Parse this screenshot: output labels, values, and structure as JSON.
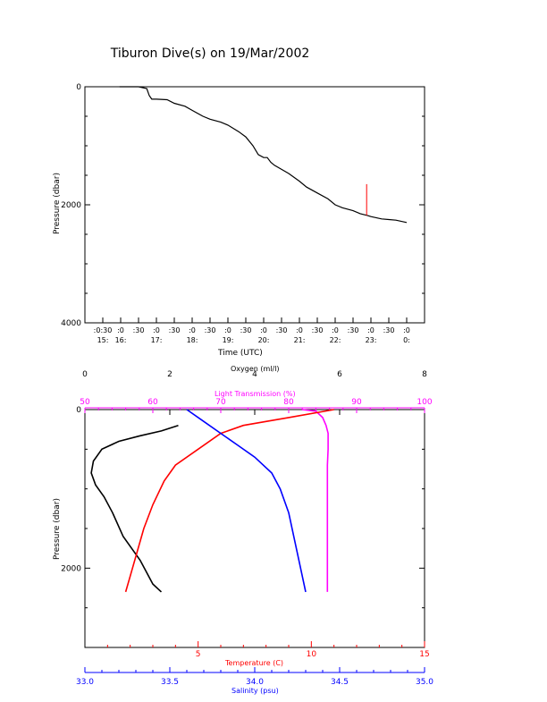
{
  "title": "Tiburon Dive(s) on 19/Mar/2002",
  "colors": {
    "depth_trace": "#000000",
    "spike": "#ff0000",
    "oxygen": "#000000",
    "light": "#ff00ff",
    "temperature": "#ff0000",
    "salinity": "#0000ff"
  },
  "chart_data": [
    {
      "type": "line",
      "title": "Tiburon Dive(s) on 19/Mar/2002",
      "xlabel": "Time (UTC)",
      "ylabel": "Pressure (dbar)",
      "ylim": [
        4000,
        0
      ],
      "yticks": [
        {
          "value": 0,
          "label": "0"
        },
        {
          "value": 2000,
          "label": "2000"
        },
        {
          "value": 4000,
          "label": "4000"
        }
      ],
      "xticks": [
        {
          "value": 15.5,
          "top": ":0:30",
          "bottom": "15:"
        },
        {
          "value": 16.0,
          "top": ":0",
          "bottom": "16:"
        },
        {
          "value": 16.5,
          "top": ":30",
          "bottom": ""
        },
        {
          "value": 17.0,
          "top": ":0",
          "bottom": "17:"
        },
        {
          "value": 17.5,
          "top": ":30",
          "bottom": ""
        },
        {
          "value": 18.0,
          "top": ":0",
          "bottom": "18:"
        },
        {
          "value": 18.5,
          "top": ":30",
          "bottom": ""
        },
        {
          "value": 19.0,
          "top": ":0",
          "bottom": "19:"
        },
        {
          "value": 19.5,
          "top": ":30",
          "bottom": ""
        },
        {
          "value": 20.0,
          "top": ":0",
          "bottom": "20:"
        },
        {
          "value": 20.5,
          "top": ":30",
          "bottom": ""
        },
        {
          "value": 21.0,
          "top": ":0",
          "bottom": "21:"
        },
        {
          "value": 21.5,
          "top": ":30",
          "bottom": ""
        },
        {
          "value": 22.0,
          "top": ":0",
          "bottom": "22:"
        },
        {
          "value": 22.5,
          "top": ":30",
          "bottom": ""
        },
        {
          "value": 23.0,
          "top": ":0",
          "bottom": "23:"
        },
        {
          "value": 23.5,
          "top": ":30",
          "bottom": ""
        },
        {
          "value": 24.0,
          "top": ":0",
          "bottom": "0:"
        }
      ],
      "series": [
        {
          "x": [
            15.97,
            16.3,
            16.5,
            16.73,
            16.8,
            16.87,
            17.0,
            17.3,
            17.5,
            17.8,
            18.0,
            18.3,
            18.5,
            18.8,
            19.0,
            19.3,
            19.5,
            19.7,
            19.85,
            20.0,
            20.1,
            20.2,
            20.3,
            20.5,
            20.7,
            21.0,
            21.2,
            21.5,
            21.8,
            22.0,
            22.2,
            22.5,
            22.7,
            22.9,
            23.0,
            23.3,
            23.5,
            23.7,
            24.0
          ],
          "y": [
            0,
            0,
            0,
            30,
            150,
            210,
            210,
            220,
            280,
            330,
            400,
            500,
            550,
            600,
            650,
            760,
            850,
            1000,
            1150,
            1200,
            1200,
            1280,
            1330,
            1400,
            1470,
            1600,
            1700,
            1800,
            1900,
            2000,
            2050,
            2100,
            2150,
            2180,
            2200,
            2240,
            2250,
            2260,
            2300
          ]
        }
      ],
      "annotations": [
        {
          "type": "spike",
          "x": 22.88,
          "y_from": 2180,
          "y_to": 1650,
          "color": "#ff0000"
        }
      ]
    },
    {
      "type": "line",
      "ylabel": "Pressure (dbar)",
      "ylim": [
        3000,
        0
      ],
      "yticks": [
        {
          "value": 0,
          "label": "0"
        },
        {
          "value": 2000,
          "label": "2000"
        }
      ],
      "axes": {
        "oxygen": {
          "label": "Oxygen (ml/l)",
          "range": [
            0,
            8
          ],
          "ticks": [
            "0",
            "2",
            "4",
            "6",
            "8"
          ]
        },
        "light": {
          "label": "Light Transmission (%)",
          "range": [
            50,
            100
          ],
          "ticks": [
            "50",
            "60",
            "70",
            "80",
            "90",
            "100"
          ]
        },
        "temperature": {
          "label": "Temperature (C)",
          "range": [
            0,
            15
          ],
          "ticks": [
            "5",
            "10",
            "15"
          ]
        },
        "salinity": {
          "label": "Salinity (psu)",
          "range": [
            33.0,
            35.0
          ],
          "ticks": [
            "33.0",
            "33.5",
            "34.0",
            "34.5",
            "35.0"
          ]
        }
      },
      "series": [
        {
          "axis": "oxygen",
          "x": [
            2.2,
            1.8,
            1.3,
            0.8,
            0.4,
            0.2,
            0.15,
            0.25,
            0.45,
            0.65,
            0.9,
            1.3,
            1.6,
            1.8
          ],
          "y": [
            200,
            270,
            330,
            400,
            500,
            650,
            800,
            950,
            1100,
            1300,
            1600,
            1900,
            2200,
            2300
          ]
        },
        {
          "axis": "light",
          "x": [
            82,
            84,
            85,
            85.5,
            85.8,
            85.8,
            85.7,
            85.7,
            85.7,
            85.7,
            85.7
          ],
          "y": [
            0,
            20,
            100,
            200,
            300,
            500,
            700,
            1000,
            1500,
            2000,
            2300
          ]
        },
        {
          "axis": "temperature",
          "x": [
            11.0,
            9.0,
            7.0,
            6.0,
            5.0,
            4.0,
            3.5,
            3.0,
            2.6,
            2.3,
            2.0,
            1.8
          ],
          "y": [
            0,
            100,
            200,
            300,
            500,
            700,
            900,
            1200,
            1500,
            1800,
            2100,
            2300
          ]
        },
        {
          "axis": "salinity",
          "x": [
            33.6,
            33.7,
            33.8,
            33.9,
            34.0,
            34.1,
            34.15,
            34.2,
            34.23,
            34.27,
            34.3
          ],
          "y": [
            0,
            150,
            300,
            450,
            600,
            800,
            1000,
            1300,
            1600,
            2000,
            2300
          ]
        }
      ]
    }
  ]
}
